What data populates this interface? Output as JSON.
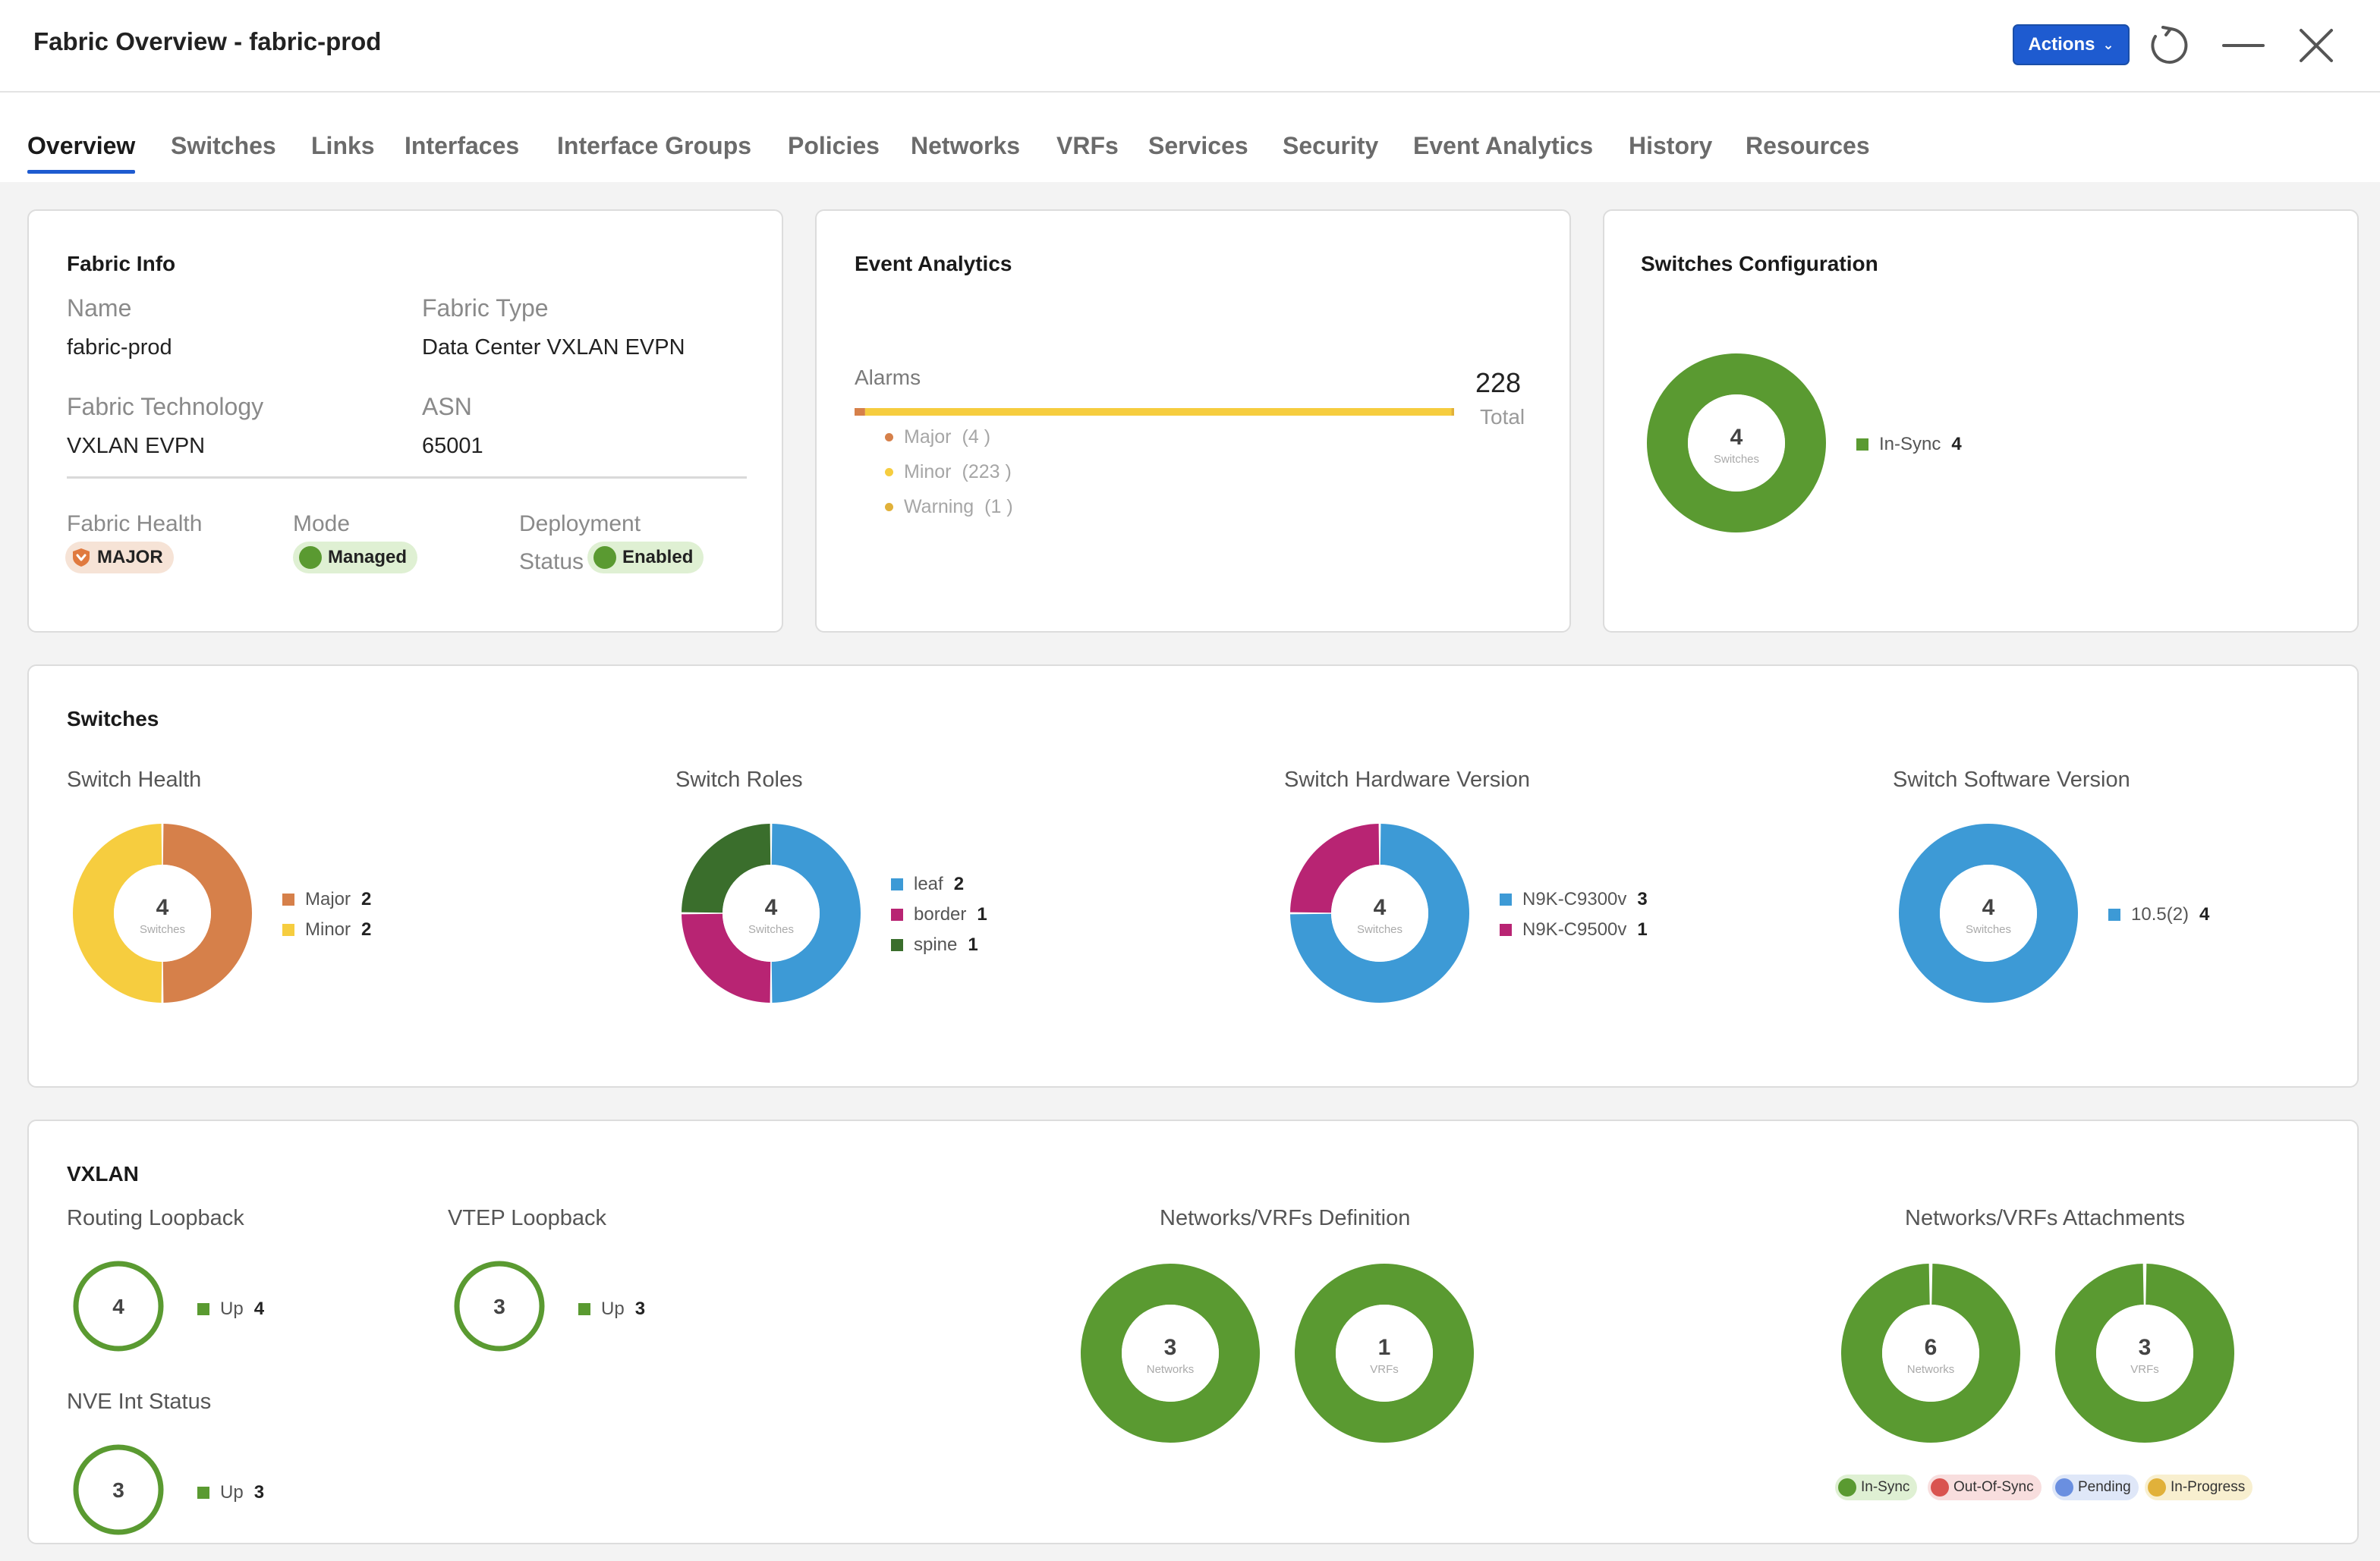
{
  "window": {
    "title": "Fabric Overview - fabric-prod",
    "actions_label": "Actions"
  },
  "tabs": [
    {
      "label": "Overview"
    },
    {
      "label": "Switches"
    },
    {
      "label": "Links"
    },
    {
      "label": "Interfaces"
    },
    {
      "label": "Interface Groups"
    },
    {
      "label": "Policies"
    },
    {
      "label": "Networks"
    },
    {
      "label": "VRFs"
    },
    {
      "label": "Services"
    },
    {
      "label": "Security"
    },
    {
      "label": "Event Analytics"
    },
    {
      "label": "History"
    },
    {
      "label": "Resources"
    }
  ],
  "fabric_info": {
    "title": "Fabric Info",
    "name_label": "Name",
    "name_value": "fabric-prod",
    "type_label": "Fabric Type",
    "type_value": "Data Center VXLAN EVPN",
    "tech_label": "Fabric Technology",
    "tech_value": "VXLAN EVPN",
    "asn_label": "ASN",
    "asn_value": "65001",
    "health_label": "Fabric Health",
    "health_value": "MAJOR",
    "mode_label": "Mode",
    "mode_value": "Managed",
    "deploy_label": "Deployment",
    "deploy_label2": "Status",
    "deploy_value": "Enabled"
  },
  "event_analytics": {
    "title": "Event Analytics",
    "alarms_label": "Alarms",
    "total_value": "228",
    "total_label": "Total",
    "rows": [
      {
        "label": "Major",
        "count": "(4 )",
        "color": "#d6804a"
      },
      {
        "label": "Minor",
        "count": "(223 )",
        "color": "#f6cd3f"
      },
      {
        "label": "Warning",
        "count": "(1 )",
        "color": "#e1b13a"
      }
    ]
  },
  "switches_config": {
    "title": "Switches Configuration",
    "center_value": "4",
    "center_label": "Switches",
    "legend": [
      {
        "label": "In-Sync",
        "value": "4",
        "color": "#5a9a31"
      }
    ]
  },
  "switches": {
    "title": "Switches",
    "health": {
      "label": "Switch Health",
      "center_value": "4",
      "center_label": "Switches",
      "legend": [
        {
          "label": "Major",
          "value": "2",
          "color": "#d6804a"
        },
        {
          "label": "Minor",
          "value": "2",
          "color": "#f6cd3f"
        }
      ]
    },
    "roles": {
      "label": "Switch Roles",
      "center_value": "4",
      "center_label": "Switches",
      "legend": [
        {
          "label": "leaf",
          "value": "2",
          "color": "#3d9ad6"
        },
        {
          "label": "border",
          "value": "1",
          "color": "#b82473"
        },
        {
          "label": "spine",
          "value": "1",
          "color": "#3a6e2c"
        }
      ]
    },
    "hardware": {
      "label": "Switch Hardware Version",
      "center_value": "4",
      "center_label": "Switches",
      "legend": [
        {
          "label": "N9K-C9300v",
          "value": "3",
          "color": "#3d9ad6"
        },
        {
          "label": "N9K-C9500v",
          "value": "1",
          "color": "#b82473"
        }
      ]
    },
    "software": {
      "label": "Switch Software Version",
      "center_value": "4",
      "center_label": "Switches",
      "legend": [
        {
          "label": "10.5(2)",
          "value": "4",
          "color": "#3d9ad6"
        }
      ]
    }
  },
  "vxlan": {
    "title": "VXLAN",
    "routing_loopback": {
      "label": "Routing Loopback",
      "value": "4",
      "legend_label": "Up",
      "legend_value": "4"
    },
    "vtep_loopback": {
      "label": "VTEP Loopback",
      "value": "3",
      "legend_label": "Up",
      "legend_value": "3"
    },
    "nve_status": {
      "label": "NVE Int Status",
      "value": "3",
      "legend_label": "Up",
      "legend_value": "3"
    },
    "definition": {
      "label": "Networks/VRFs Definition",
      "networks_value": "3",
      "networks_label": "Networks",
      "vrfs_value": "1",
      "vrfs_label": "VRFs"
    },
    "attachments": {
      "label": "Networks/VRFs Attachments",
      "networks_value": "6",
      "networks_label": "Networks",
      "vrfs_value": "3",
      "vrfs_label": "VRFs",
      "statuses": [
        {
          "label": "In-Sync",
          "color": "#5a9a31",
          "bg": "#dff0d3"
        },
        {
          "label": "Out-Of-Sync",
          "color": "#d9534f",
          "bg": "#f8dede"
        },
        {
          "label": "Pending",
          "color": "#6a8fe0",
          "bg": "#dfe7f8"
        },
        {
          "label": "In-Progress",
          "color": "#e1b13a",
          "bg": "#f8efcf"
        }
      ]
    }
  },
  "colors": {
    "accent": "#1e5bd0",
    "green": "#5a9a31",
    "orange": "#d6804a",
    "yellow": "#f6cd3f",
    "blue": "#3d9ad6",
    "magenta": "#b82473",
    "dark_green": "#3a6e2c"
  }
}
